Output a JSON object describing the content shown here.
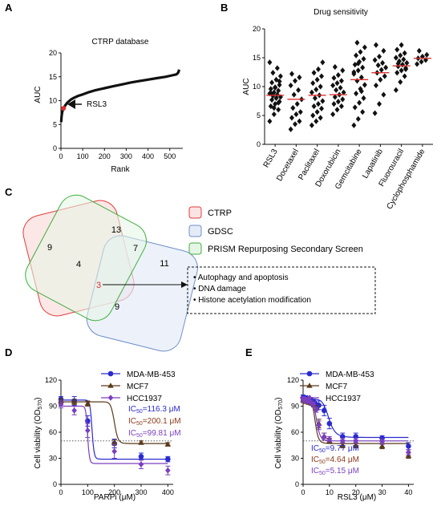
{
  "panels": {
    "A": {
      "letter": "A",
      "title": "CTRP database",
      "xlabel": "Rank",
      "ylabel": "AUC",
      "annotation": "RSL3"
    },
    "B": {
      "letter": "B",
      "title": "Drug sensitivity",
      "ylabel": "AUC"
    },
    "C": {
      "letter": "C",
      "legend": [
        {
          "label": "CTRP",
          "color": "#e03c3c",
          "fill": "#fbe3e3"
        },
        {
          "label": "GDSC",
          "color": "#6f8fc8",
          "fill": "#e4ebf7"
        },
        {
          "label": "PRISM Repurposing Secondary Screen",
          "color": "#3fae3f",
          "fill": "#e6f5e6"
        }
      ],
      "venn_numbers": [
        "9",
        "13",
        "4",
        "7",
        "11",
        "3",
        "9"
      ],
      "bullets": [
        "Autophagy and apoptosis",
        "DNA damage",
        "Histone acetylation modification"
      ]
    },
    "D": {
      "letter": "D",
      "xlabel": "PARPi (μM)",
      "ylabel_main": "Cell viability (OD",
      "ylabel_sub": "570",
      "ylabel_end": ")",
      "ic50": [
        {
          "prefix": "IC",
          "sub": "50",
          "value": "=116.3 μM",
          "color": "#2a2ad0"
        },
        {
          "prefix": "IC",
          "sub": "50",
          "value": "=200.1 μM",
          "color": "#8b3a1a"
        },
        {
          "prefix": "IC",
          "sub": "50",
          "value": "=99.81 μM",
          "color": "#7a3fbf"
        }
      ]
    },
    "E": {
      "letter": "E",
      "xlabel": "RSL3 (μM)",
      "ylabel_main": "Cell viability (OD",
      "ylabel_sub": "570",
      "ylabel_end": ")",
      "ic50": [
        {
          "prefix": "IC",
          "sub": "50",
          "value": "=9.77 μM",
          "color": "#2a2ad0"
        },
        {
          "prefix": "IC",
          "sub": "50",
          "value": "=4.64 μM",
          "color": "#8b3a1a"
        },
        {
          "prefix": "IC",
          "sub": "50",
          "value": "=5.15 μM",
          "color": "#7a3fbf"
        }
      ]
    }
  },
  "colors": {
    "mda": "#2a2ad0",
    "mcf7": "#5a3a1a",
    "hcc": "#7a3fbf",
    "median": "#e03030",
    "rank_curve": "#111111"
  },
  "chart_data": [
    {
      "panel": "A",
      "type": "line",
      "title": "CTRP database",
      "xlabel": "Rank",
      "ylabel": "AUC",
      "xlim": [
        0,
        560
      ],
      "ylim": [
        0,
        20
      ],
      "xticks": [
        0,
        100,
        200,
        300,
        400,
        500
      ],
      "yticks": [
        0,
        5,
        10,
        15,
        20
      ],
      "x": [
        1,
        3,
        6,
        10,
        15,
        20,
        30,
        45,
        60,
        80,
        100,
        130,
        160,
        200,
        240,
        280,
        320,
        360,
        400,
        440,
        480,
        510,
        530,
        538,
        541,
        543
      ],
      "y": [
        5.5,
        6.7,
        7.6,
        8.2,
        8.6,
        9.0,
        9.6,
        10.2,
        10.6,
        11.0,
        11.3,
        11.8,
        12.2,
        12.6,
        13.0,
        13.4,
        13.8,
        14.1,
        14.4,
        14.7,
        15.0,
        15.3,
        15.5,
        15.8,
        16.1,
        16.5
      ],
      "highlight": {
        "label": "RSL3",
        "x": 12,
        "y": 8.4
      }
    },
    {
      "panel": "B",
      "type": "scatter",
      "title": "Drug sensitivity",
      "ylabel": "AUC",
      "ylim": [
        0,
        20
      ],
      "yticks": [
        0,
        5,
        10,
        15,
        20
      ],
      "categories": [
        "RSL3",
        "Docetaxel",
        "Paclitaxel",
        "Doxorubicin",
        "Gemcitabine",
        "Lapatinib",
        "Fluorouracil",
        "Cyclophosphamide"
      ],
      "medians": [
        8.5,
        7.8,
        8.5,
        8.6,
        11.2,
        12.4,
        13.6,
        14.9
      ],
      "points": [
        [
          4.0,
          5.2,
          6.0,
          6.6,
          7.0,
          7.4,
          7.7,
          8.0,
          8.2,
          8.4,
          8.6,
          8.8,
          9.0,
          9.3,
          9.6,
          9.9,
          10.3,
          10.7,
          11.2,
          11.8,
          12.4,
          13.2,
          14.2,
          6.3,
          7.2,
          8.9,
          9.8,
          10.9
        ],
        [
          2.6,
          3.5,
          4.0,
          4.6,
          5.2,
          5.6,
          6.3,
          7.0,
          7.8,
          8.6,
          9.4,
          10.2,
          11.0,
          11.6,
          12.2
        ],
        [
          3.3,
          4.0,
          4.6,
          5.0,
          5.6,
          6.2,
          6.6,
          7.0,
          7.5,
          8.0,
          8.5,
          9.0,
          9.5,
          10.0,
          10.6,
          11.2,
          11.8,
          12.4,
          13.0,
          14.2
        ],
        [
          5.2,
          6.0,
          6.6,
          7.0,
          7.4,
          7.8,
          8.2,
          8.6,
          9.0,
          9.4,
          9.8,
          10.2,
          10.6,
          11.0,
          11.5,
          12.0,
          12.8,
          13.4
        ],
        [
          3.3,
          4.4,
          5.6,
          6.4,
          7.2,
          8.0,
          8.8,
          9.6,
          10.3,
          11.0,
          11.6,
          12.2,
          12.8,
          13.3,
          13.8,
          14.3,
          14.8,
          15.4,
          16.0,
          16.8,
          17.6,
          9.2,
          12.5,
          14.0
        ],
        [
          5.4,
          7.0,
          8.6,
          10.2,
          11.2,
          11.8,
          12.4,
          12.9,
          13.3,
          13.7,
          14.1,
          14.6,
          15.2,
          16.2,
          17.2
        ],
        [
          9.4,
          10.8,
          11.8,
          12.4,
          12.8,
          13.2,
          13.5,
          13.8,
          14.1,
          14.4,
          14.7,
          15.0,
          15.4,
          15.8,
          16.4,
          17.2,
          13.0,
          14.0
        ],
        [
          13.9,
          14.3,
          14.6,
          14.9,
          15.2,
          15.5,
          16.2
        ]
      ]
    },
    {
      "panel": "D",
      "type": "scatter",
      "xlabel": "PARPi (μM)",
      "ylabel": "Cell viability (OD570)",
      "xlim": [
        0,
        420
      ],
      "ylim": [
        0,
        120
      ],
      "xticks": [
        0,
        100,
        200,
        300,
        400
      ],
      "yticks": [
        0,
        30,
        60,
        90,
        120
      ],
      "threshold": 50,
      "series": [
        {
          "name": "MDA-MB-453",
          "marker": "circle",
          "x": [
            0,
            50,
            100,
            200,
            300,
            400
          ],
          "y": [
            98,
            96,
            73,
            47,
            32,
            29
          ],
          "err": [
            3,
            5,
            6,
            5,
            4,
            3
          ],
          "fit": {
            "top": 97,
            "bottom": 29,
            "ic50": 116.3,
            "hill": 30
          }
        },
        {
          "name": "MCF7",
          "marker": "triangle",
          "x": [
            0,
            50,
            100,
            200,
            300,
            400
          ],
          "y": [
            96,
            95,
            93,
            48,
            48,
            46
          ],
          "err": [
            3,
            3,
            3,
            3,
            2,
            2
          ],
          "fit": {
            "top": 95,
            "bottom": 47,
            "ic50": 200.1,
            "hill": 30
          }
        },
        {
          "name": "HCC1937",
          "marker": "diamond",
          "x": [
            0,
            50,
            100,
            200,
            300,
            400
          ],
          "y": [
            92,
            85,
            62,
            38,
            23,
            16
          ],
          "err": [
            4,
            5,
            8,
            8,
            5,
            5
          ],
          "fit": {
            "top": 90,
            "bottom": 24,
            "ic50": 99.81,
            "hill": 30
          }
        }
      ]
    },
    {
      "panel": "E",
      "type": "scatter",
      "xlabel": "RSL3 (μM)",
      "ylabel": "Cell viability (OD570)",
      "xlim": [
        0,
        42
      ],
      "ylim": [
        0,
        120
      ],
      "xticks": [
        0,
        10,
        20,
        30,
        40
      ],
      "yticks": [
        0,
        30,
        60,
        90,
        120
      ],
      "threshold": 50,
      "series": [
        {
          "name": "MDA-MB-453",
          "marker": "circle",
          "x": [
            0,
            1,
            2,
            3,
            4,
            5,
            6,
            8,
            10,
            15,
            20,
            30,
            40
          ],
          "y": [
            100,
            99,
            98,
            97,
            95,
            92,
            91,
            85,
            70,
            55,
            55,
            53,
            44
          ],
          "err": [
            3,
            3,
            3,
            3,
            3,
            4,
            5,
            6,
            6,
            4,
            4,
            3,
            4
          ],
          "fit": {
            "top": 98,
            "bottom": 54,
            "ic50": 9.77,
            "hill": 8
          }
        },
        {
          "name": "MCF7",
          "marker": "triangle",
          "x": [
            0,
            1,
            2,
            3,
            4,
            5,
            6,
            8,
            10,
            15,
            20,
            30,
            40
          ],
          "y": [
            97,
            96,
            95,
            94,
            92,
            88,
            70,
            55,
            50,
            45,
            45,
            44,
            33
          ],
          "err": [
            3,
            3,
            3,
            3,
            3,
            3,
            5,
            4,
            3,
            3,
            3,
            3,
            3
          ],
          "fit": {
            "top": 96,
            "bottom": 47,
            "ic50": 4.64,
            "hill": 8
          }
        },
        {
          "name": "HCC1937",
          "marker": "diamond",
          "x": [
            0,
            1,
            2,
            3,
            4,
            5,
            6,
            8,
            10,
            15,
            20,
            30,
            40
          ],
          "y": [
            98,
            97,
            96,
            94,
            92,
            86,
            68,
            55,
            52,
            50,
            50,
            49,
            37
          ],
          "err": [
            3,
            3,
            3,
            3,
            3,
            3,
            5,
            4,
            3,
            3,
            3,
            3,
            3
          ],
          "fit": {
            "top": 97,
            "bottom": 50,
            "ic50": 5.15,
            "hill": 8
          }
        }
      ]
    }
  ]
}
